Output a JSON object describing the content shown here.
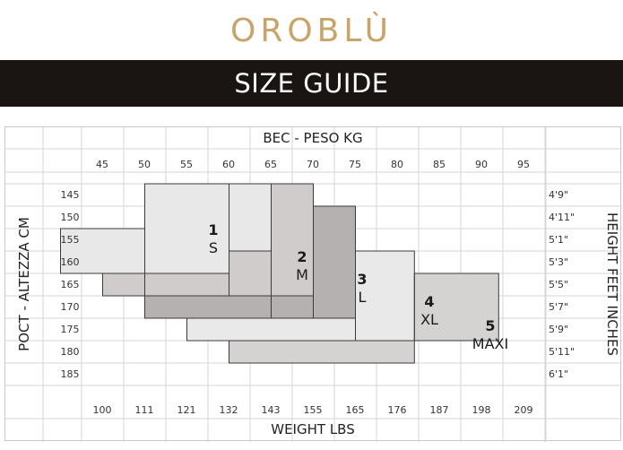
{
  "brand": "OROBLÙ",
  "banner_title": "SIZE GUIDE",
  "chart_data": {
    "type": "table",
    "top_title": "BEC - PESO KG",
    "bottom_title": "WEIGHT LBS",
    "left_title": "POCT - ALTEZZA CM",
    "right_title": "HEIGHT FEET INCHES",
    "weight_kg": [
      "45",
      "50",
      "55",
      "60",
      "65",
      "70",
      "75",
      "80",
      "85",
      "90",
      "95"
    ],
    "weight_lbs": [
      "100",
      "111",
      "121",
      "132",
      "143",
      "155",
      "165",
      "176",
      "187",
      "198",
      "209"
    ],
    "height_cm": [
      "145",
      "150",
      "155",
      "160",
      "165",
      "170",
      "175",
      "180",
      "185"
    ],
    "height_ft": [
      "4'9\"",
      "4'11\"",
      "5'1\"",
      "5'3\"",
      "5'5\"",
      "5'7\"",
      "5'9\"",
      "5'11\"",
      "6'1\""
    ],
    "sizes": [
      {
        "number": "1",
        "label": "S",
        "color": "#e8e8e8",
        "regions": [
          {
            "kg_from": 45,
            "kg_to": 55,
            "cm_from": 155,
            "cm_to": 165
          },
          {
            "kg_from": 55,
            "kg_to": 65,
            "cm_from": 145,
            "cm_to": 165
          },
          {
            "kg_from": 65,
            "kg_to": 70,
            "cm_from": 145,
            "cm_to": 160
          }
        ]
      },
      {
        "number": "2",
        "label": "M",
        "color": "#d0cccc",
        "regions": [
          {
            "kg_from": 70,
            "kg_to": 75,
            "cm_from": 145,
            "cm_to": 170
          },
          {
            "kg_from": 65,
            "kg_to": 70,
            "cm_from": 160,
            "cm_to": 170
          },
          {
            "kg_from": 55,
            "kg_to": 65,
            "cm_from": 165,
            "cm_to": 170
          },
          {
            "kg_from": 50,
            "kg_to": 55,
            "cm_from": 165,
            "cm_to": 170
          }
        ]
      },
      {
        "number": "3",
        "label": "L",
        "color": "#b4b1b0",
        "regions": [
          {
            "kg_from": 75,
            "kg_to": 80,
            "cm_from": 150,
            "cm_to": 175
          },
          {
            "kg_from": 70,
            "kg_to": 75,
            "cm_from": 170,
            "cm_to": 175
          },
          {
            "kg_from": 55,
            "kg_to": 70,
            "cm_from": 170,
            "cm_to": 175
          }
        ]
      },
      {
        "number": "4",
        "label": "XL",
        "color": "#e9e9e9",
        "regions": [
          {
            "kg_from": 80,
            "kg_to": 87,
            "cm_from": 160,
            "cm_to": 180
          },
          {
            "kg_from": 60,
            "kg_to": 80,
            "cm_from": 175,
            "cm_to": 180
          }
        ]
      },
      {
        "number": "5",
        "label": "MAXI",
        "color": "#d5d2d2",
        "regions": [
          {
            "kg_from": 87,
            "kg_to": 97,
            "cm_from": 165,
            "cm_to": 180
          },
          {
            "kg_from": 65,
            "kg_to": 87,
            "cm_from": 180,
            "cm_to": 185
          }
        ]
      }
    ]
  }
}
